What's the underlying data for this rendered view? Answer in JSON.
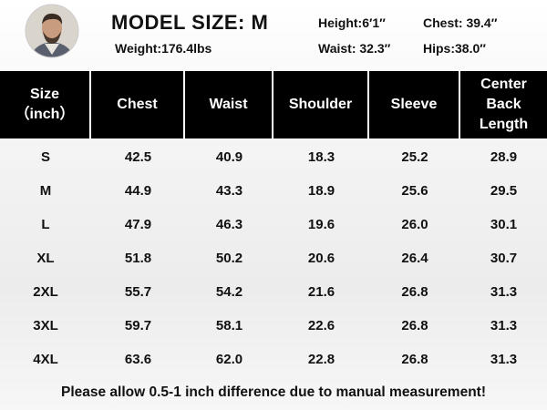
{
  "header": {
    "title": "MODEL SIZE: M",
    "weight": "Weight:176.4lbs",
    "height": "Height:6′1″",
    "chest": "Chest: 39.4″",
    "waist": "Waist: 32.3″",
    "hips": "Hips:38.0″"
  },
  "table": {
    "columns": [
      [
        "Size",
        "（inch）"
      ],
      [
        "Chest"
      ],
      [
        "Waist"
      ],
      [
        "Shoulder"
      ],
      [
        "Sleeve"
      ],
      [
        "Center",
        "Back",
        "Length"
      ]
    ],
    "rows": [
      [
        "S",
        "42.5",
        "40.9",
        "18.3",
        "25.2",
        "28.9"
      ],
      [
        "M",
        "44.9",
        "43.3",
        "18.9",
        "25.6",
        "29.5"
      ],
      [
        "L",
        "47.9",
        "46.3",
        "19.6",
        "26.0",
        "30.1"
      ],
      [
        "XL",
        "51.8",
        "50.2",
        "20.6",
        "26.4",
        "30.7"
      ],
      [
        "2XL",
        "55.7",
        "54.2",
        "21.6",
        "26.8",
        "31.3"
      ],
      [
        "3XL",
        "59.7",
        "58.1",
        "22.6",
        "26.8",
        "31.3"
      ],
      [
        "4XL",
        "63.6",
        "62.0",
        "22.8",
        "26.8",
        "31.3"
      ]
    ]
  },
  "footer": {
    "note": "Please allow 0.5-1 inch difference due to manual measurement!"
  }
}
